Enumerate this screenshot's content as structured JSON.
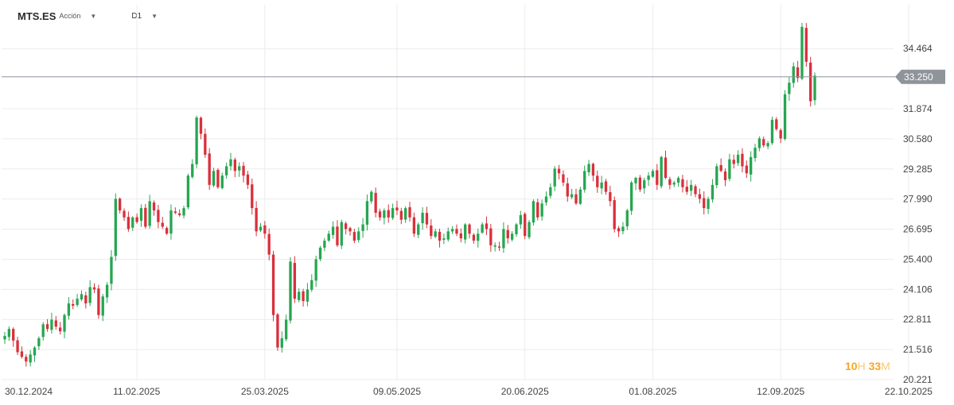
{
  "header": {
    "symbol": "MTS.ES",
    "instrument_type": "Acción",
    "timeframe": "D1"
  },
  "countdown": {
    "hours": "10",
    "hours_unit": "H",
    "minutes": "33",
    "minutes_unit": "M"
  },
  "colors": {
    "up": "#26a650",
    "down": "#d9303c",
    "grid": "#ececec",
    "price_line": "#8e949a",
    "price_tag": "#8e949a"
  },
  "chart_data": {
    "type": "candlestick",
    "current_price": 33.25,
    "current_price_label": "33.250",
    "ylim": [
      20.221,
      35.6
    ],
    "y_ticks": [
      34.464,
      31.874,
      30.58,
      29.285,
      27.99,
      26.695,
      25.4,
      24.106,
      22.811,
      21.516,
      20.221
    ],
    "y_tick_labels": [
      "34.464",
      "31.874",
      "30.580",
      "29.285",
      "27.990",
      "26.695",
      "25.400",
      "24.106",
      "22.811",
      "21.516",
      "20.221"
    ],
    "x_ticks": [
      {
        "label": "30.12.2024",
        "index": 0
      },
      {
        "label": "11.02.2025",
        "index": 31
      },
      {
        "label": "25.03.2025",
        "index": 61
      },
      {
        "label": "09.05.2025",
        "index": 92
      },
      {
        "label": "20.06.2025",
        "index": 122
      },
      {
        "label": "01.08.2025",
        "index": 152
      },
      {
        "label": "12.09.2025",
        "index": 182
      },
      {
        "label": "22.10.2025",
        "index": 212
      }
    ],
    "closes": [
      22.1,
      22.4,
      21.9,
      21.4,
      21.2,
      21.0,
      21.3,
      21.6,
      22.0,
      22.6,
      22.4,
      22.8,
      22.5,
      22.3,
      23.0,
      23.5,
      23.4,
      23.7,
      23.9,
      23.5,
      24.2,
      24.1,
      23.0,
      23.8,
      24.3,
      25.5,
      28.0,
      27.5,
      27.2,
      26.7,
      27.2,
      27.0,
      27.6,
      26.8,
      27.9,
      27.5,
      27.0,
      26.8,
      26.5,
      27.5,
      27.4,
      27.3,
      27.6,
      29.0,
      29.5,
      31.5,
      30.8,
      29.9,
      28.6,
      29.2,
      28.5,
      29.0,
      29.4,
      29.7,
      29.2,
      29.4,
      29.0,
      28.6,
      27.6,
      26.6,
      26.8,
      26.5,
      25.6,
      23.0,
      21.6,
      22.0,
      22.8,
      25.3,
      23.7,
      24.0,
      23.6,
      24.1,
      24.5,
      25.4,
      25.9,
      26.2,
      26.5,
      26.8,
      26.0,
      27.0,
      26.7,
      26.6,
      26.2,
      26.6,
      26.9,
      27.9,
      28.3,
      27.4,
      27.2,
      27.5,
      27.2,
      27.6,
      27.5,
      27.1,
      27.6,
      27.2,
      26.5,
      26.9,
      27.4,
      26.9,
      26.4,
      26.6,
      26.2,
      26.3,
      26.6,
      26.7,
      26.5,
      26.3,
      26.9,
      26.5,
      26.2,
      26.5,
      26.9,
      26.7,
      26.0,
      26.0,
      25.9,
      26.7,
      26.3,
      26.5,
      26.9,
      27.3,
      26.4,
      27.0,
      27.9,
      27.2,
      27.8,
      28.1,
      28.5,
      29.3,
      29.1,
      28.7,
      28.1,
      28.2,
      27.8,
      28.4,
      29.2,
      29.5,
      29.0,
      28.5,
      28.7,
      28.3,
      27.9,
      26.7,
      26.6,
      26.8,
      27.5,
      28.7,
      28.9,
      28.4,
      28.8,
      29.0,
      29.2,
      28.6,
      29.8,
      28.9,
      28.6,
      28.7,
      28.9,
      28.5,
      28.3,
      28.6,
      28.2,
      28.0,
      27.6,
      28.0,
      28.6,
      29.4,
      29.2,
      28.8,
      29.7,
      29.5,
      29.9,
      29.4,
      29.1,
      29.8,
      30.2,
      30.6,
      30.3,
      30.4,
      31.4,
      31.0,
      30.6,
      32.5,
      33.0,
      33.7,
      33.2,
      35.4,
      33.9,
      32.2,
      33.3
    ],
    "x_index_range": [
      0,
      215
    ]
  }
}
